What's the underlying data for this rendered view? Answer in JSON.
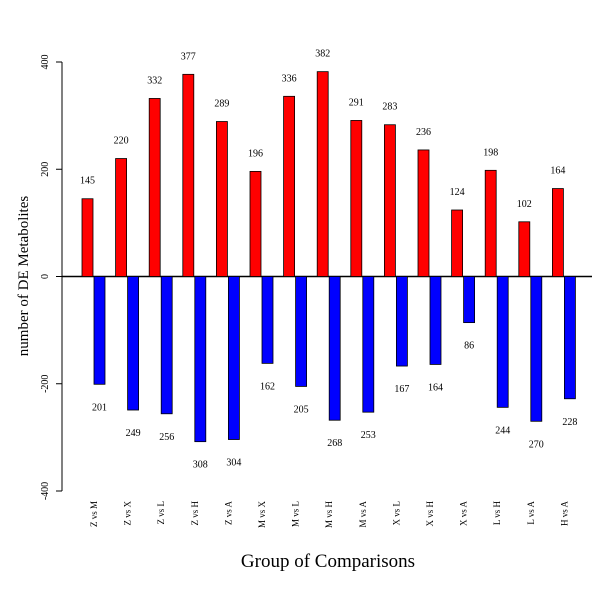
{
  "chart_data": {
    "type": "bar",
    "xlabel": "Group of Comparisons",
    "ylabel": "number of DE Metabolites",
    "ylim": [
      -400,
      400
    ],
    "yticks": [
      -400,
      -200,
      0,
      200,
      400
    ],
    "categories": [
      "Z vs M",
      "Z vs X",
      "Z vs L",
      "Z vs H",
      "Z vs A",
      "M vs X",
      "M vs L",
      "M vs H",
      "M vs A",
      "X vs L",
      "X vs H",
      "X vs A",
      "L vs H",
      "L vs A",
      "H vs A"
    ],
    "series": [
      {
        "color": "#ff0000",
        "values": [
          145,
          220,
          332,
          377,
          289,
          196,
          336,
          382,
          291,
          283,
          236,
          124,
          198,
          102,
          164
        ]
      },
      {
        "color": "#0000ff",
        "values": [
          -201,
          -249,
          -256,
          -308,
          -304,
          -162,
          -205,
          -268,
          -253,
          -167,
          -164,
          -86,
          -244,
          -270,
          -228
        ]
      }
    ],
    "data_labels": {
      "up": [
        "145",
        "220",
        "332",
        "377",
        "289",
        "196",
        "336",
        "382",
        "291",
        "283",
        "236",
        "124",
        "198",
        "102",
        "164"
      ],
      "down": [
        "201",
        "249",
        "256",
        "308",
        "304",
        "162",
        "205",
        "268",
        "253",
        "167",
        "164",
        "86",
        "244",
        "270",
        "228"
      ]
    },
    "zero_line": true,
    "grid": false,
    "legend": "none"
  }
}
